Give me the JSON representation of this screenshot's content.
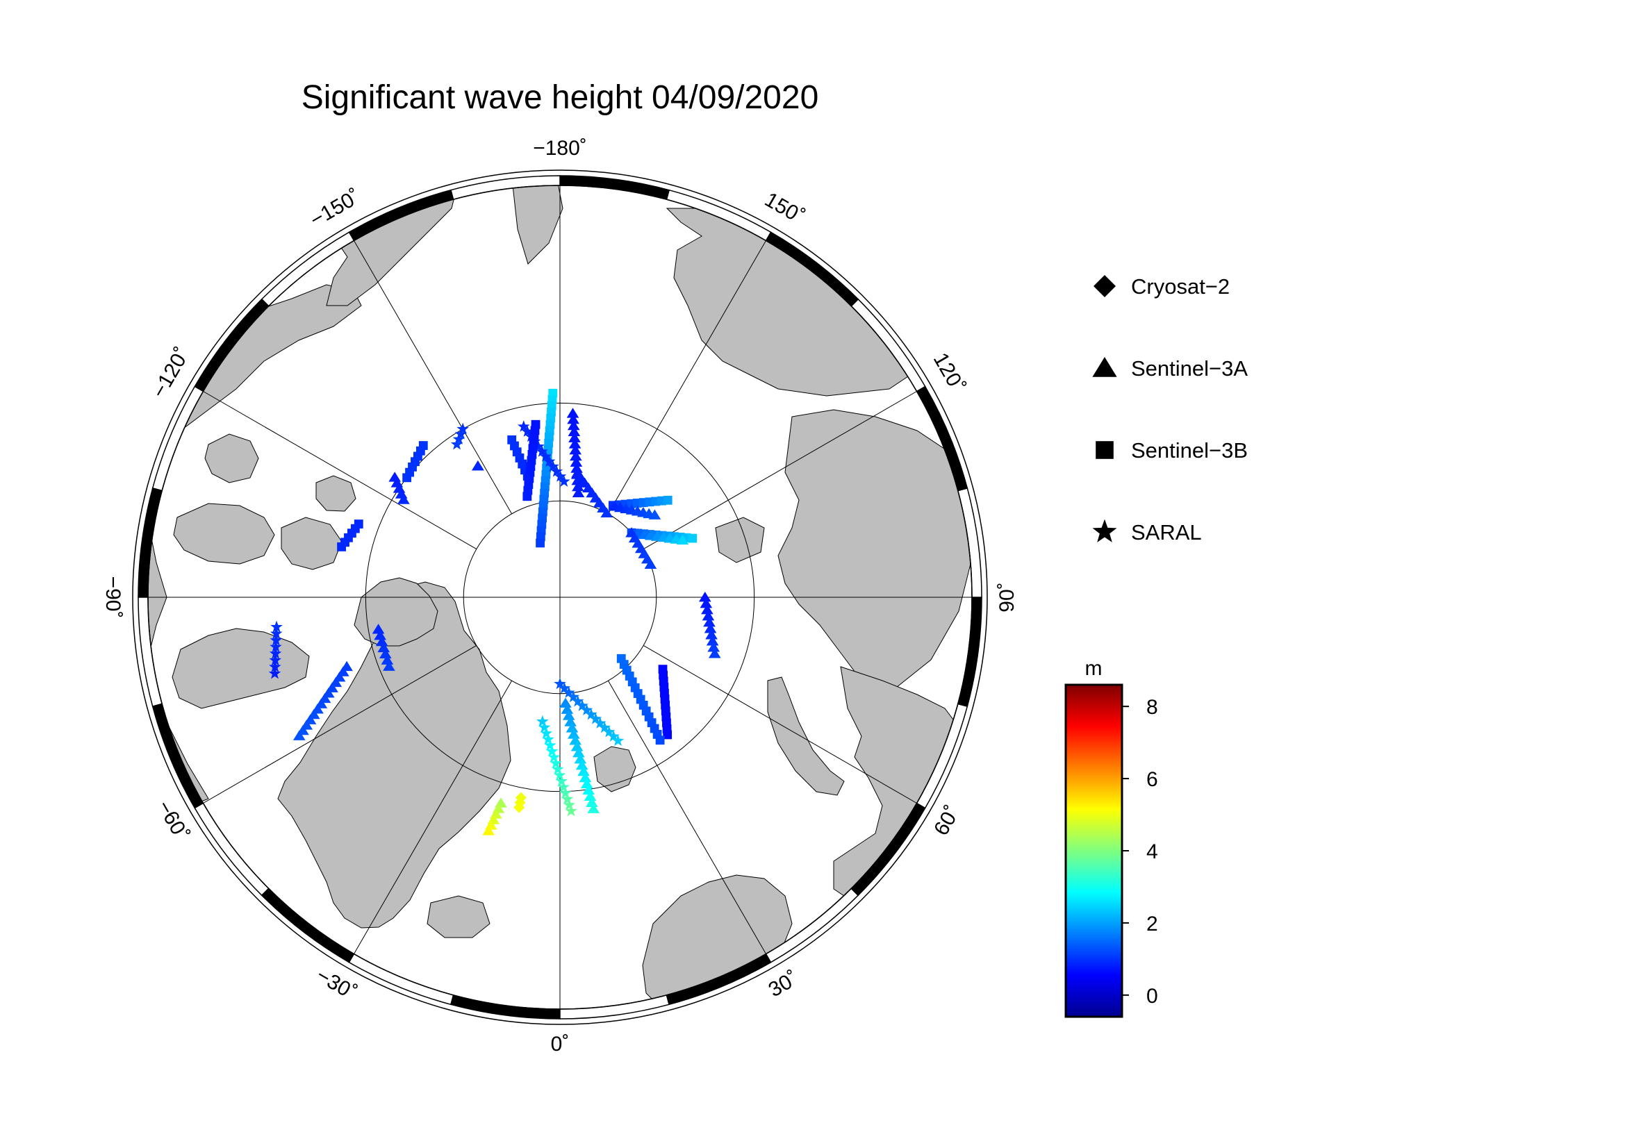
{
  "chart_data": {
    "type": "map",
    "title": "Significant wave height 04/09/2020",
    "projection": "polar-stereographic-north",
    "longitude_labels": [
      {
        "lon": -180,
        "text": "−180˚"
      },
      {
        "lon": 150,
        "text": "150˚"
      },
      {
        "lon": 120,
        "text": "120˚"
      },
      {
        "lon": 90,
        "text": "90˚"
      },
      {
        "lon": 60,
        "text": "60˚"
      },
      {
        "lon": 30,
        "text": "30˚"
      },
      {
        "lon": 0,
        "text": "0˚"
      },
      {
        "lon": -30,
        "text": "−30˚"
      },
      {
        "lon": -60,
        "text": "−60˚"
      },
      {
        "lon": -90,
        "text": "−90˚"
      },
      {
        "lon": -120,
        "text": "−120˚"
      },
      {
        "lon": -150,
        "text": "−150˚"
      }
    ],
    "legend": {
      "position": "right",
      "entries": [
        {
          "label": "Cryosat−2",
          "symbol": "diamond"
        },
        {
          "label": "Sentinel−3A",
          "symbol": "triangle"
        },
        {
          "label": "Sentinel−3B",
          "symbol": "square"
        },
        {
          "label": "SARAL",
          "symbol": "star"
        }
      ]
    },
    "colorbar": {
      "unit": "m",
      "range": [
        -0.6,
        8.6
      ],
      "ticks": [
        0,
        2,
        4,
        6,
        8
      ],
      "colormap": "jet"
    },
    "colors": {
      "land": "#bebebe",
      "ocean": "#ffffff",
      "frame": "#000000"
    },
    "tracks": [
      {
        "satellite": "Sentinel-3B",
        "start": [
          -178,
          69
        ],
        "end": [
          -160,
          84
        ],
        "swh": [
          2.6,
          1.1
        ]
      },
      {
        "satellite": "SARAL",
        "start": [
          -168,
          72
        ],
        "end": [
          178,
          78
        ],
        "swh": [
          0.9,
          1.0
        ]
      },
      {
        "satellite": "Sentinel-3A",
        "start": [
          176,
          71
        ],
        "end": [
          170,
          79
        ],
        "swh": [
          0.7,
          0.8
        ]
      },
      {
        "satellite": "Sentinel-3A",
        "start": [
          172,
          77
        ],
        "end": [
          151,
          80
        ],
        "swh": [
          0.8,
          1.0
        ]
      },
      {
        "satellite": "Sentinel-3B",
        "start": [
          -163,
          73
        ],
        "end": [
          -165,
          77
        ],
        "swh": [
          1.0,
          0.9
        ]
      },
      {
        "satellite": "Sentinel-3B",
        "start": [
          -172,
          72
        ],
        "end": [
          -162,
          79
        ],
        "swh": [
          0.7,
          0.8
        ]
      },
      {
        "satellite": "Sentinel-3B",
        "start": [
          150,
          79
        ],
        "end": [
          132,
          75
        ],
        "swh": [
          1.0,
          2.0
        ]
      },
      {
        "satellite": "Sentinel-3A",
        "start": [
          149,
          79
        ],
        "end": [
          131,
          77
        ],
        "swh": [
          0.9,
          1.3
        ]
      },
      {
        "satellite": "Sentinel-3B",
        "start": [
          132,
          80
        ],
        "end": [
          114,
          75
        ],
        "swh": [
          1.2,
          2.4
        ]
      },
      {
        "satellite": "Sentinel-3A",
        "start": [
          132,
          80
        ],
        "end": [
          115,
          76
        ],
        "swh": [
          1.3,
          2.5
        ]
      },
      {
        "satellite": "Sentinel-3A",
        "start": [
          132,
          80
        ],
        "end": [
          110,
          80
        ],
        "swh": [
          1.0,
          1.1
        ]
      },
      {
        "satellite": "Sentinel-3A",
        "start": [
          90,
          75
        ],
        "end": [
          70,
          73
        ],
        "swh": [
          0.7,
          1.1
        ]
      },
      {
        "satellite": "Sentinel-3B",
        "start": [
          55,
          77
        ],
        "end": [
          38,
          72
        ],
        "swh": [
          0.6,
          0.6
        ]
      },
      {
        "satellite": "Sentinel-3B",
        "start": [
          45,
          81
        ],
        "end": [
          35,
          72
        ],
        "swh": [
          1.5,
          1.2
        ]
      },
      {
        "satellite": "SARAL",
        "start": [
          0,
          81
        ],
        "end": [
          22,
          74
        ],
        "swh": [
          1.3,
          2.4
        ]
      },
      {
        "satellite": "Sentinel-3A",
        "start": [
          3,
          79
        ],
        "end": [
          9,
          68
        ],
        "swh": [
          1.8,
          3.1
        ]
      },
      {
        "satellite": "SARAL",
        "start": [
          -8,
          77
        ],
        "end": [
          3,
          68
        ],
        "swh": [
          2.4,
          3.8
        ]
      },
      {
        "satellite": "Sentinel-3A",
        "start": [
          -16,
          68
        ],
        "end": [
          -17,
          65
        ],
        "swh": [
          4.4,
          5.2
        ]
      },
      {
        "satellite": "Cryosat-2",
        "start": [
          -11,
          69
        ],
        "end": [
          -11,
          68
        ],
        "swh": [
          5.0,
          5.1
        ]
      },
      {
        "satellite": "Sentinel-3A",
        "start": [
          -62,
          60
        ],
        "end": [
          -72,
          67
        ],
        "swh": [
          1.3,
          1.1
        ]
      },
      {
        "satellite": "Sentinel-3A",
        "start": [
          -68,
          71
        ],
        "end": [
          -80,
          71
        ],
        "swh": [
          1.1,
          0.9
        ]
      },
      {
        "satellite": "SARAL",
        "start": [
          -84,
          61
        ],
        "end": [
          -75,
          60
        ],
        "swh": [
          1.0,
          0.8
        ]
      },
      {
        "satellite": "Sentinel-3B",
        "start": [
          -103,
          67
        ],
        "end": [
          -110,
          68
        ],
        "swh": [
          0.9,
          0.9
        ]
      },
      {
        "satellite": "Sentinel-3A",
        "start": [
          -122,
          71
        ],
        "end": [
          -126,
          69
        ],
        "swh": [
          0.9,
          0.8
        ]
      },
      {
        "satellite": "Sentinel-3B",
        "start": [
          -138,
          69
        ],
        "end": [
          -128,
          70
        ],
        "swh": [
          1.0,
          1.0
        ]
      },
      {
        "satellite": "SARAL",
        "start": [
          -146,
          71
        ],
        "end": [
          -150,
          70
        ],
        "swh": [
          1.1,
          1.0
        ]
      },
      {
        "satellite": "Sentinel-3A",
        "start": [
          -148,
          74
        ],
        "end": [
          -148,
          74
        ],
        "swh": [
          0.9,
          0.9
        ]
      }
    ]
  }
}
